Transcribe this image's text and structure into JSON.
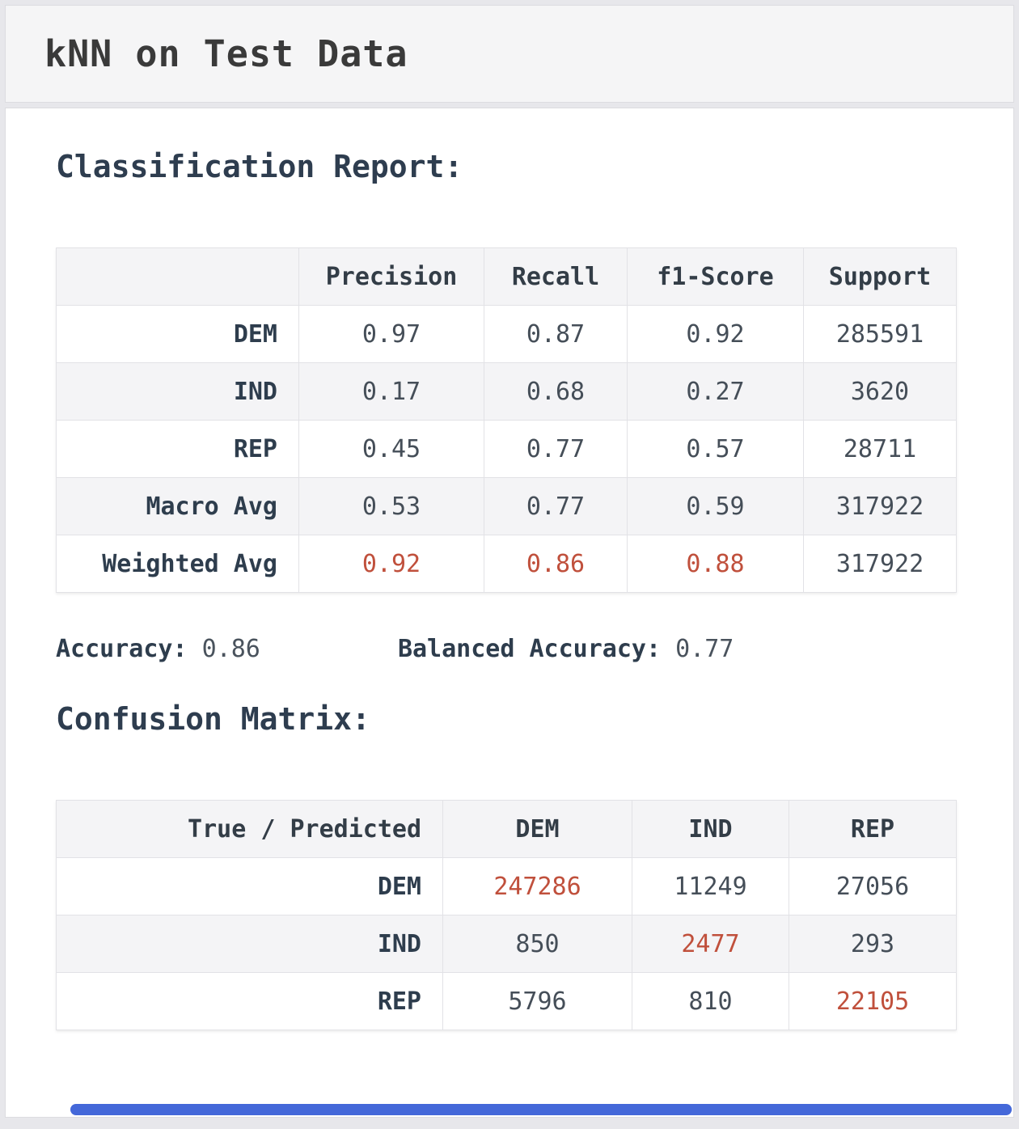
{
  "title": "kNN on Test Data",
  "colors": {
    "accent_red": "#c0503c",
    "heading": "#2e3d4f",
    "stripe_bg": "#f4f4f6",
    "scrollbar_blue": "#4468d9"
  },
  "classification_report": {
    "heading": "Classification Report:",
    "header": [
      "",
      "Precision",
      "Recall",
      "f1-Score",
      "Support"
    ],
    "rows": [
      [
        "DEM",
        "0.97",
        "0.87",
        "0.92",
        "285591"
      ],
      [
        "IND",
        "0.17",
        "0.68",
        "0.27",
        "3620"
      ],
      [
        "REP",
        "0.45",
        "0.77",
        "0.57",
        "28711"
      ],
      [
        "Macro Avg",
        "0.53",
        "0.77",
        "0.59",
        "317922"
      ],
      [
        "Weighted Avg",
        "0.92",
        "0.86",
        "0.88",
        "317922"
      ]
    ],
    "accuracy_label": "Accuracy:",
    "accuracy_value": "0.86",
    "balanced_accuracy_label": "Balanced Accuracy:",
    "balanced_accuracy_value": "0.77"
  },
  "confusion_matrix": {
    "heading": "Confusion Matrix:",
    "header": [
      "True / Predicted",
      "DEM",
      "IND",
      "REP"
    ],
    "rows": [
      [
        "DEM",
        "247286",
        "11249",
        "27056"
      ],
      [
        "IND",
        "850",
        "2477",
        "293"
      ],
      [
        "REP",
        "5796",
        "810",
        "22105"
      ]
    ]
  }
}
